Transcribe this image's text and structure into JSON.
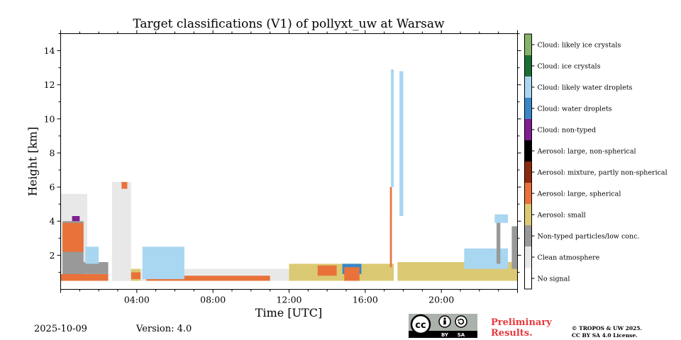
{
  "chart_data": {
    "type": "heatmap",
    "title": "Target classifications (V1) of pollyxt_uw at Warsaw",
    "xlabel": "Time [UTC]",
    "ylabel": "Height [km]",
    "xlim": [
      0,
      24
    ],
    "ylim": [
      0,
      15
    ],
    "x_ticks": [
      4,
      8,
      12,
      16,
      20
    ],
    "x_tick_labels": [
      "04:00",
      "08:00",
      "12:00",
      "16:00",
      "20:00"
    ],
    "y_ticks": [
      2,
      4,
      6,
      8,
      10,
      12,
      14
    ],
    "y_tick_labels": [
      "2",
      "4",
      "6",
      "8",
      "10",
      "12",
      "14"
    ],
    "legend_placement": "right colorbar",
    "classes": [
      {
        "label": "No signal",
        "color": "#ffffff"
      },
      {
        "label": "Clean atmosphere",
        "color": "#e8e8e8"
      },
      {
        "label": "Non-typed particles/low conc.",
        "color": "#999999"
      },
      {
        "label": "Aerosol: small",
        "color": "#dbc973"
      },
      {
        "label": "Aerosol: large, spherical",
        "color": "#e8723a"
      },
      {
        "label": "Aerosol: mixture, partly non-spherical",
        "color": "#8c2a0e"
      },
      {
        "label": "Aerosol: large, non-spherical",
        "color": "#000000"
      },
      {
        "label": "Cloud: non-typed",
        "color": "#7f1f8f"
      },
      {
        "label": "Cloud: water droplets",
        "color": "#3a87c8"
      },
      {
        "label": "Cloud: likely water droplets",
        "color": "#a9d6f0"
      },
      {
        "label": "Cloud: ice crystals",
        "color": "#1b6e36"
      },
      {
        "label": "Cloud: likely ice crystals",
        "color": "#86b36a"
      }
    ],
    "regions": [
      {
        "class": "Clean atmosphere",
        "x": [
          0.0,
          1.4
        ],
        "y": [
          0.5,
          5.6
        ]
      },
      {
        "class": "Non-typed particles/low conc.",
        "x": [
          0.1,
          1.2
        ],
        "y": [
          0.5,
          4.0
        ]
      },
      {
        "class": "Aerosol: large, spherical",
        "x": [
          0.1,
          1.2
        ],
        "y": [
          2.2,
          3.9
        ]
      },
      {
        "class": "Aerosol: large, spherical",
        "x": [
          0.0,
          2.5
        ],
        "y": [
          0.5,
          0.9
        ]
      },
      {
        "class": "Non-typed particles/low conc.",
        "x": [
          1.1,
          2.5
        ],
        "y": [
          0.9,
          1.6
        ]
      },
      {
        "class": "Cloud: likely water droplets",
        "x": [
          1.3,
          2.0
        ],
        "y": [
          1.5,
          2.5
        ]
      },
      {
        "class": "Cloud: non-typed",
        "x": [
          0.6,
          1.0
        ],
        "y": [
          4.0,
          4.3
        ]
      },
      {
        "class": "Aerosol: small",
        "x": [
          2.7,
          4.2
        ],
        "y": [
          0.5,
          1.2
        ]
      },
      {
        "class": "Aerosol: large, spherical",
        "x": [
          3.0,
          4.2
        ],
        "y": [
          0.6,
          1.0
        ]
      },
      {
        "class": "Clean atmosphere",
        "x": [
          2.7,
          3.7
        ],
        "y": [
          0.5,
          6.3
        ]
      },
      {
        "class": "Aerosol: large, spherical",
        "x": [
          3.2,
          3.5
        ],
        "y": [
          5.9,
          6.3
        ]
      },
      {
        "class": "Clean atmosphere",
        "x": [
          4.2,
          12.0
        ],
        "y": [
          0.5,
          1.2
        ]
      },
      {
        "class": "Aerosol: large, spherical",
        "x": [
          4.5,
          11.0
        ],
        "y": [
          0.5,
          0.8
        ]
      },
      {
        "class": "Cloud: likely water droplets",
        "x": [
          4.3,
          6.5
        ],
        "y": [
          0.6,
          2.5
        ]
      },
      {
        "class": "Aerosol: small",
        "x": [
          12.0,
          17.5
        ],
        "y": [
          0.5,
          1.5
        ]
      },
      {
        "class": "Aerosol: large, spherical",
        "x": [
          13.5,
          14.5
        ],
        "y": [
          0.8,
          1.4
        ]
      },
      {
        "class": "Cloud: water droplets",
        "x": [
          14.8,
          15.8
        ],
        "y": [
          0.9,
          1.5
        ]
      },
      {
        "class": "Aerosol: large, spherical",
        "x": [
          14.9,
          15.7
        ],
        "y": [
          0.5,
          1.3
        ]
      },
      {
        "class": "Aerosol: large, spherical",
        "x": [
          17.3,
          17.4
        ],
        "y": [
          1.3,
          6.0
        ]
      },
      {
        "class": "Cloud: likely water droplets",
        "x": [
          17.35,
          17.5
        ],
        "y": [
          6.0,
          12.9
        ]
      },
      {
        "class": "Cloud: likely water droplets",
        "x": [
          17.8,
          18.0
        ],
        "y": [
          4.3,
          12.8
        ]
      },
      {
        "class": "Aerosol: small",
        "x": [
          17.7,
          24.0
        ],
        "y": [
          0.5,
          1.6
        ]
      },
      {
        "class": "Cloud: likely water droplets",
        "x": [
          21.2,
          23.5
        ],
        "y": [
          1.2,
          2.4
        ]
      },
      {
        "class": "Non-typed particles/low conc.",
        "x": [
          22.9,
          23.1
        ],
        "y": [
          1.5,
          4.1
        ]
      },
      {
        "class": "Cloud: likely water droplets",
        "x": [
          22.8,
          23.5
        ],
        "y": [
          3.9,
          4.4
        ]
      },
      {
        "class": "Non-typed particles/low conc.",
        "x": [
          23.7,
          24.0
        ],
        "y": [
          1.2,
          3.7
        ]
      }
    ]
  },
  "footer": {
    "date": "2025-10-09",
    "version": "Version: 4.0",
    "preliminary": "Preliminary Results.",
    "copyright_line1": "© TROPOS & UW 2025.",
    "copyright_line2": "CC BY SA 4.0 License.",
    "cc_text": "cc",
    "cc_by": "BY",
    "cc_sa": "SA"
  }
}
